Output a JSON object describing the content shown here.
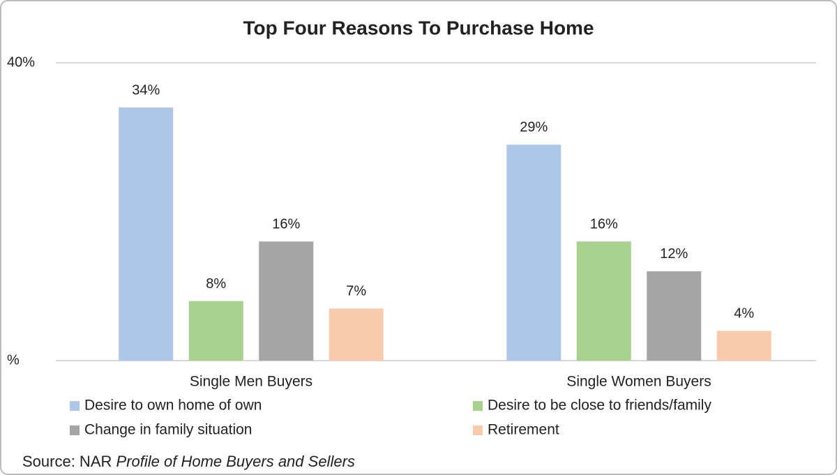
{
  "chart_data": {
    "type": "bar",
    "title": "Top Four Reasons To Purchase Home",
    "categories": [
      "Single Men Buyers",
      "Single Women Buyers"
    ],
    "series": [
      {
        "name": "Desire to own home of own",
        "color": "#aec6e8",
        "values": [
          34,
          29
        ],
        "value_labels": [
          "34%",
          "29%"
        ]
      },
      {
        "name": "Desire to be close to friends/family",
        "color": "#a9d18e",
        "values": [
          8,
          16
        ],
        "value_labels": [
          "8%",
          "16%"
        ]
      },
      {
        "name": "Change in family situation",
        "color": "#a5a5a5",
        "values": [
          16,
          12
        ],
        "value_labels": [
          "16%",
          "12%"
        ]
      },
      {
        "name": "Retirement",
        "color": "#f8cbad",
        "values": [
          7,
          4
        ],
        "value_labels": [
          "7%",
          "4%"
        ]
      }
    ],
    "ylim": [
      0,
      40
    ],
    "yticks": [
      {
        "value": 0,
        "label": "%"
      },
      {
        "value": 40,
        "label": "40%"
      }
    ],
    "grid": true,
    "source": "Source: NAR",
    "source_title": "Profile of Home Buyers and Sellers"
  }
}
